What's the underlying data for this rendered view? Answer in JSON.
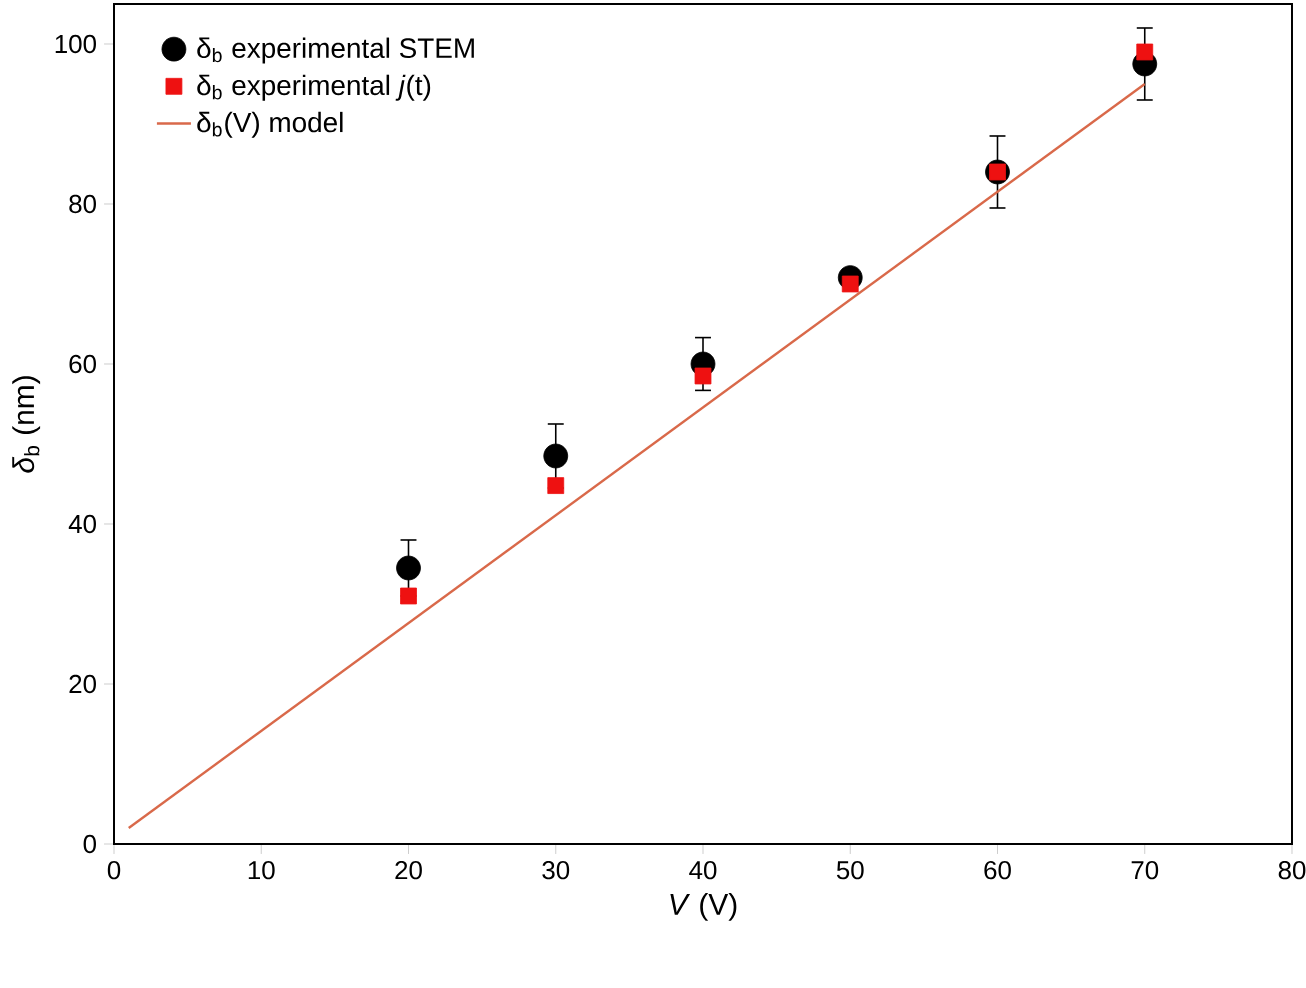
{
  "chart_data": {
    "type": "scatter",
    "xlabel": "*V* (V)",
    "ylabel": "*δ*$_{b}$ (nm)",
    "xlim": [
      0,
      80
    ],
    "ylim": [
      0,
      105
    ],
    "xticks": [
      0,
      10,
      20,
      30,
      40,
      50,
      60,
      70,
      80
    ],
    "yticks": [
      0,
      20,
      40,
      60,
      80,
      100
    ],
    "legend": "top left",
    "grid": false,
    "series": [
      {
        "name": "δ$_{b}$ experimental STEM",
        "marker": "circle",
        "color": "#000000",
        "x": [
          20,
          30,
          40,
          50,
          60,
          70
        ],
        "values": [
          34.5,
          48.5,
          60,
          70.8,
          84,
          97.5
        ],
        "errors": [
          3.5,
          4,
          3.3,
          1,
          4.5,
          4.5
        ]
      },
      {
        "name": "δ$_{b}$ experimental *j*(t)",
        "marker": "square",
        "color": "#ee1111",
        "x": [
          20,
          30,
          40,
          50,
          60,
          70
        ],
        "values": [
          31,
          44.8,
          58.5,
          70,
          84,
          99
        ]
      },
      {
        "name": "δ$_{b}$(V)  model",
        "type": "line",
        "marker": "none",
        "line_style": "solid",
        "color": "#d9694a",
        "x": [
          1,
          70
        ],
        "values": [
          2,
          95
        ]
      }
    ]
  }
}
